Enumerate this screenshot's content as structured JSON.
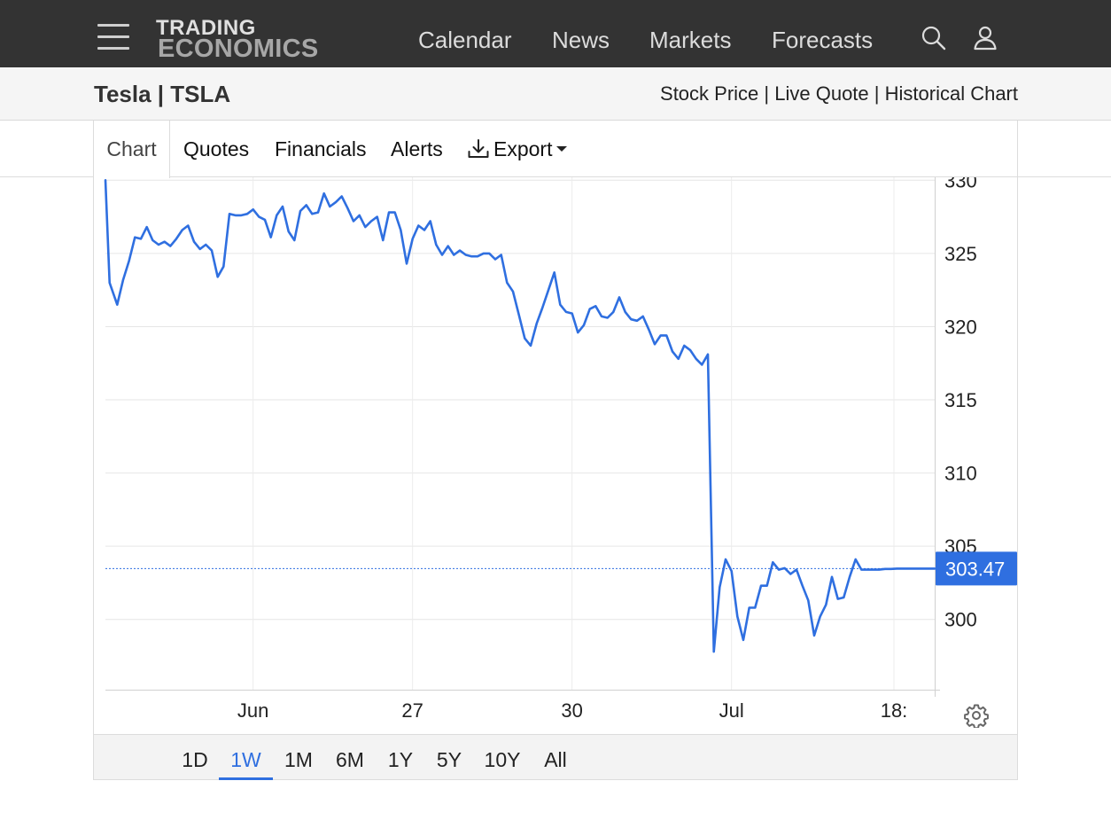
{
  "nav": {
    "logo_line1": "TRADING",
    "logo_line2": "ECONOMICS",
    "links": [
      "Calendar",
      "News",
      "Markets",
      "Forecasts"
    ]
  },
  "header": {
    "title": "Tesla | TSLA",
    "links": [
      "Stock Price",
      "Live Quote",
      "Historical Chart"
    ],
    "separator": "|"
  },
  "tabs": {
    "chart": "Chart",
    "quotes": "Quotes",
    "financials": "Financials",
    "alerts": "Alerts",
    "export": "Export"
  },
  "colors": {
    "line": "#2f6fe0",
    "nav_bg": "#333333",
    "price_tag_bg": "#2f6fe0"
  },
  "ranges": {
    "items": [
      "1D",
      "1W",
      "1M",
      "6M",
      "1Y",
      "5Y",
      "10Y",
      "All"
    ],
    "active": "1W"
  },
  "chart_data": {
    "type": "line",
    "ylim": [
      295.2,
      330.2
    ],
    "yticks": [
      300,
      305,
      310,
      315,
      320,
      325,
      330
    ],
    "last_price": 303.47,
    "last_price_label": "303.47",
    "x_ticks": [
      {
        "label": "Jun",
        "x": 25
      },
      {
        "label": "27",
        "x": 52
      },
      {
        "label": "30",
        "x": 79
      },
      {
        "label": "Jul",
        "x": 106
      },
      {
        "label": "18:",
        "x": 133.5
      }
    ],
    "x_range": [
      0,
      140.4
    ],
    "series": [
      {
        "values": [
          [
            0,
            330
          ],
          [
            0.7,
            323
          ],
          [
            2,
            321.5
          ],
          [
            3,
            323.2
          ],
          [
            4,
            324.5
          ],
          [
            5,
            326.1
          ],
          [
            6,
            326
          ],
          [
            7,
            326.8
          ],
          [
            8,
            325.9
          ],
          [
            9,
            325.6
          ],
          [
            10,
            325.8
          ],
          [
            11,
            325.5
          ],
          [
            12,
            326
          ],
          [
            13,
            326.6
          ],
          [
            14,
            326.9
          ],
          [
            15,
            325.8
          ],
          [
            16,
            325.3
          ],
          [
            17,
            325.6
          ],
          [
            18,
            325.2
          ],
          [
            19,
            323.4
          ],
          [
            20,
            324.1
          ],
          [
            21,
            327.7
          ],
          [
            22,
            327.6
          ],
          [
            23,
            327.6
          ],
          [
            24,
            327.7
          ],
          [
            25,
            328
          ],
          [
            26,
            327.5
          ],
          [
            27,
            327.3
          ],
          [
            28,
            326.1
          ],
          [
            29,
            327.6
          ],
          [
            30,
            328.2
          ],
          [
            31,
            326.5
          ],
          [
            32,
            325.9
          ],
          [
            33,
            327.9
          ],
          [
            34,
            328.3
          ],
          [
            35,
            327.7
          ],
          [
            36,
            327.8
          ],
          [
            37,
            329.1
          ],
          [
            38,
            328.2
          ],
          [
            39,
            328.5
          ],
          [
            40,
            328.9
          ],
          [
            41,
            328.1
          ],
          [
            42,
            327.2
          ],
          [
            43,
            327.6
          ],
          [
            44,
            326.8
          ],
          [
            45,
            327.2
          ],
          [
            46,
            327.5
          ],
          [
            47,
            325.9
          ],
          [
            48,
            327.8
          ],
          [
            49,
            327.8
          ],
          [
            50,
            326.6
          ],
          [
            51,
            324.3
          ],
          [
            52,
            326
          ],
          [
            53,
            326.9
          ],
          [
            54,
            326.6
          ],
          [
            55,
            327.2
          ],
          [
            56,
            325.6
          ],
          [
            57,
            324.9
          ],
          [
            58,
            325.5
          ],
          [
            59,
            324.9
          ],
          [
            60,
            325.2
          ],
          [
            61,
            324.9
          ],
          [
            62,
            324.8
          ],
          [
            63,
            324.8
          ],
          [
            64,
            325
          ],
          [
            65,
            325
          ],
          [
            66,
            324.6
          ],
          [
            67,
            324.9
          ],
          [
            68,
            323
          ],
          [
            69,
            322.4
          ],
          [
            70,
            320.8
          ],
          [
            71,
            319.2
          ],
          [
            72,
            318.7
          ],
          [
            73,
            320.2
          ],
          [
            74,
            321.3
          ],
          [
            75,
            322.5
          ],
          [
            76,
            323.7
          ],
          [
            77,
            321.5
          ],
          [
            78,
            321
          ],
          [
            79,
            320.9
          ],
          [
            80,
            319.6
          ],
          [
            81,
            320.1
          ],
          [
            82,
            321.2
          ],
          [
            83,
            321.4
          ],
          [
            84,
            320.7
          ],
          [
            85,
            320.6
          ],
          [
            86,
            321
          ],
          [
            87,
            322
          ],
          [
            88,
            321
          ],
          [
            89,
            320.5
          ],
          [
            90,
            320.4
          ],
          [
            91,
            320.7
          ],
          [
            92,
            319.8
          ],
          [
            93,
            318.8
          ],
          [
            94,
            319.4
          ],
          [
            95,
            319.4
          ],
          [
            96,
            318.3
          ],
          [
            97,
            317.8
          ],
          [
            98,
            318.7
          ],
          [
            99,
            318.4
          ],
          [
            100,
            317.8
          ],
          [
            101,
            317.4
          ],
          [
            102,
            318.1
          ],
          [
            103,
            297.8
          ],
          [
            104,
            302.2
          ],
          [
            105,
            304.1
          ],
          [
            106,
            303.3
          ],
          [
            107,
            300.2
          ],
          [
            108,
            298.6
          ],
          [
            109,
            300.8
          ],
          [
            110,
            300.8
          ],
          [
            111,
            302.3
          ],
          [
            112,
            302.3
          ],
          [
            113,
            303.9
          ],
          [
            114,
            303.4
          ],
          [
            115,
            303.5
          ],
          [
            116,
            303.1
          ],
          [
            117,
            303.4
          ],
          [
            118,
            302.3
          ],
          [
            119,
            301.3
          ],
          [
            120,
            298.9
          ],
          [
            121,
            300.2
          ],
          [
            122,
            301
          ],
          [
            123,
            302.9
          ],
          [
            124,
            301.4
          ],
          [
            125,
            301.5
          ],
          [
            126,
            302.9
          ],
          [
            127,
            304.1
          ],
          [
            128,
            303.4
          ],
          [
            129,
            303.4
          ],
          [
            130,
            303.4
          ],
          [
            131,
            303.4
          ],
          [
            132,
            303.45
          ],
          [
            133,
            303.45
          ],
          [
            134,
            303.47
          ],
          [
            135,
            303.47
          ],
          [
            136,
            303.47
          ],
          [
            137,
            303.47
          ],
          [
            138,
            303.47
          ],
          [
            139,
            303.47
          ],
          [
            140.4,
            303.47
          ]
        ]
      }
    ]
  }
}
